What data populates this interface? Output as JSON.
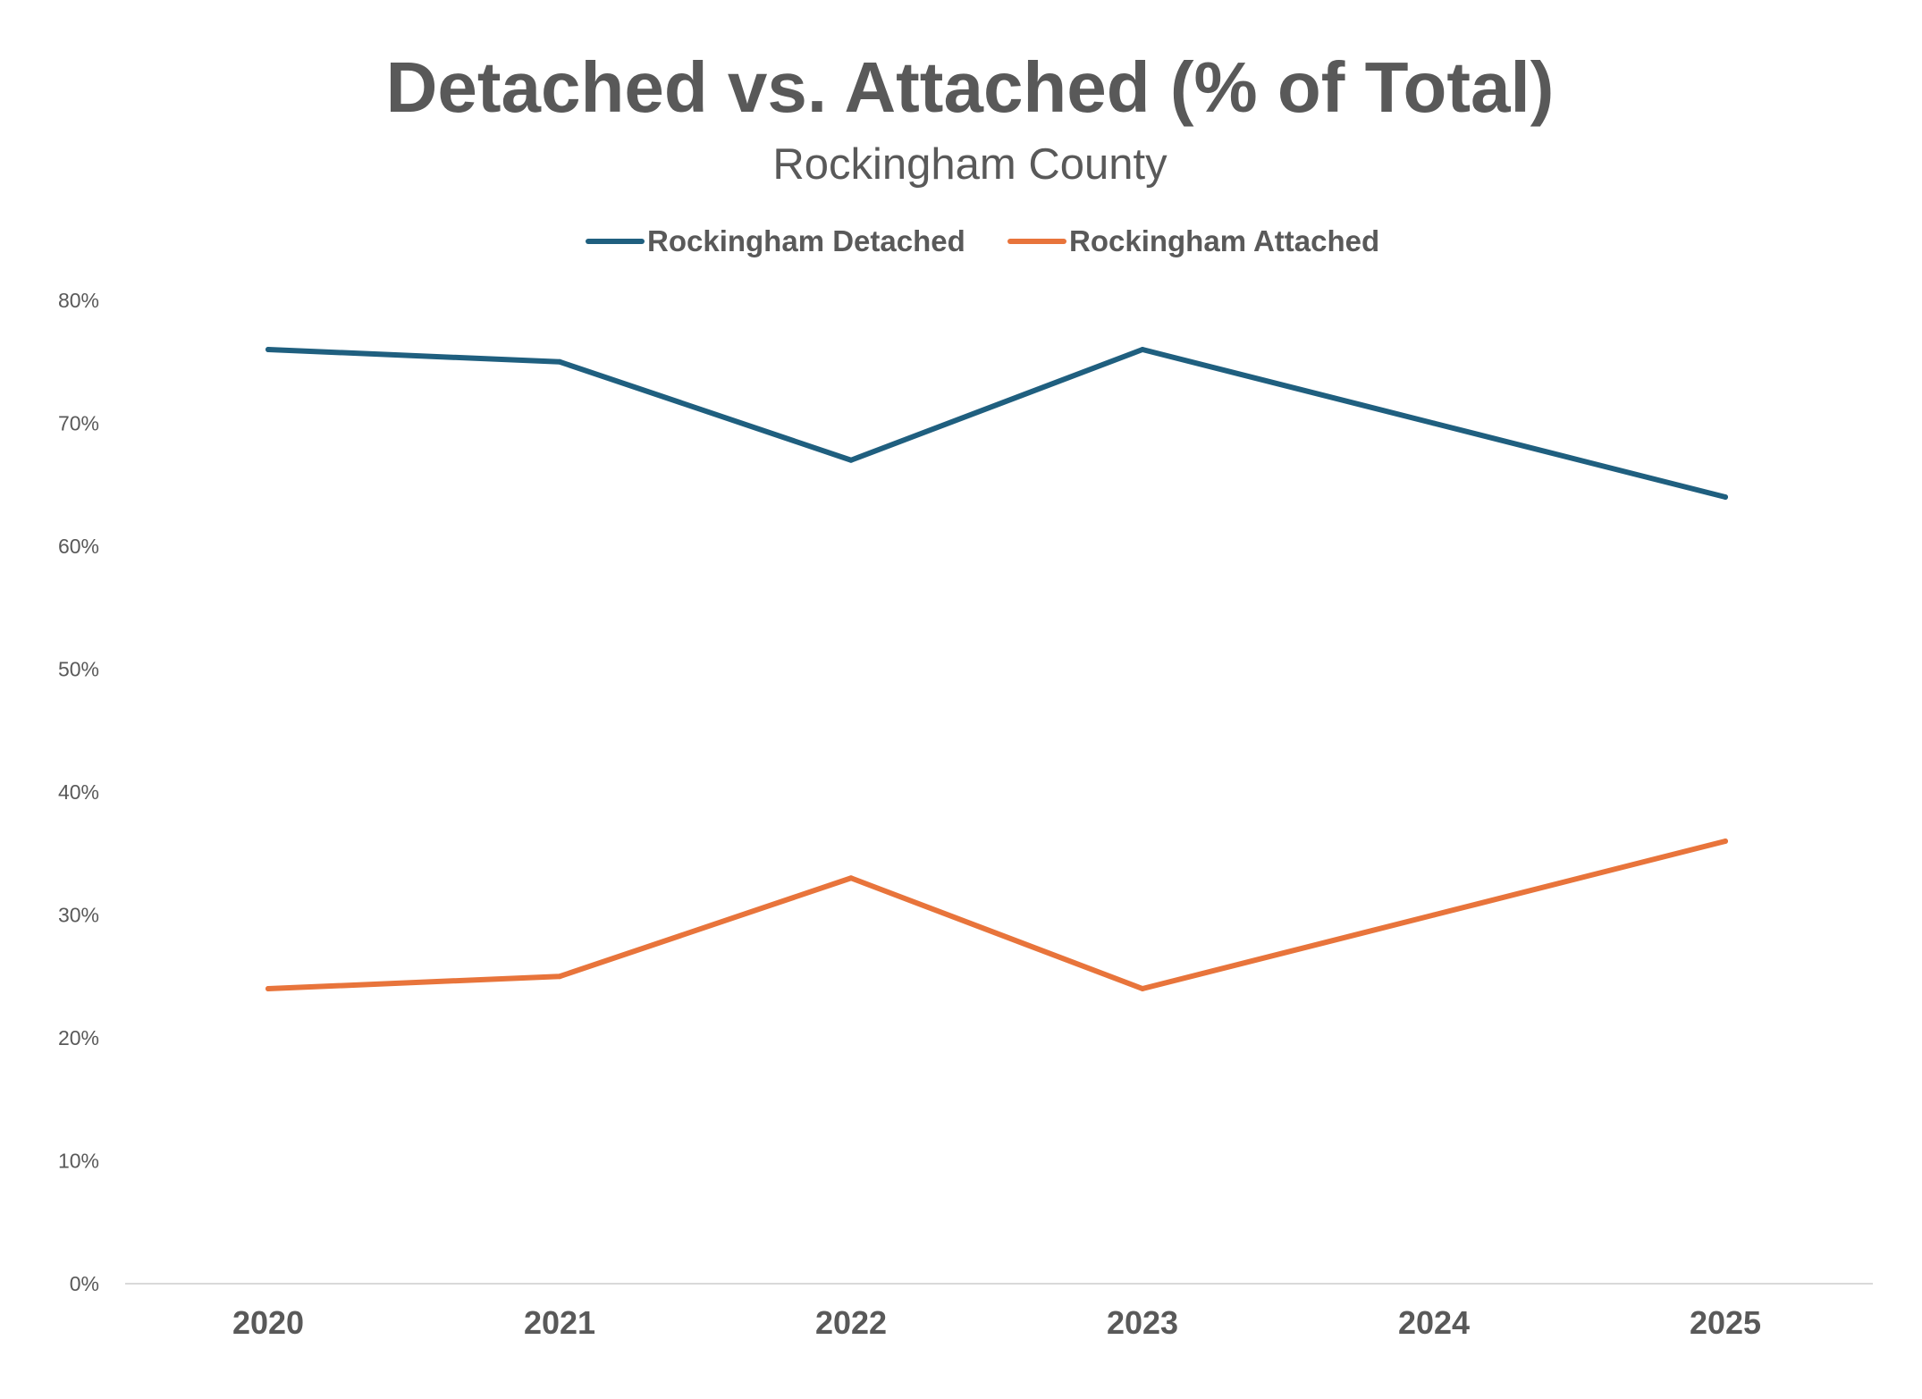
{
  "chart_data": {
    "type": "line",
    "title": "Detached vs. Attached (% of Total)",
    "subtitle": "Rockingham County",
    "xlabel": "",
    "ylabel": "",
    "categories": [
      "2020",
      "2021",
      "2022",
      "2023",
      "2024",
      "2025"
    ],
    "series": [
      {
        "name": "Rockingham Detached",
        "color": "#1F5F7F",
        "values": [
          76,
          75,
          67,
          76,
          70,
          64
        ]
      },
      {
        "name": "Rockingham Attached",
        "color": "#E8743B",
        "values": [
          24,
          25,
          33,
          24,
          30,
          36
        ]
      }
    ],
    "ylim": [
      0,
      80
    ],
    "yticks": [
      {
        "value": 0,
        "label": "0%"
      },
      {
        "value": 10,
        "label": "10%"
      },
      {
        "value": 20,
        "label": "20%"
      },
      {
        "value": 30,
        "label": "30%"
      },
      {
        "value": 40,
        "label": "40%"
      },
      {
        "value": 50,
        "label": "50%"
      },
      {
        "value": 60,
        "label": "60%"
      },
      {
        "value": 70,
        "label": "70%"
      },
      {
        "value": 80,
        "label": "80%"
      }
    ],
    "grid": false,
    "legend_position": "top-center",
    "axis_color": "#D9D9D9"
  }
}
